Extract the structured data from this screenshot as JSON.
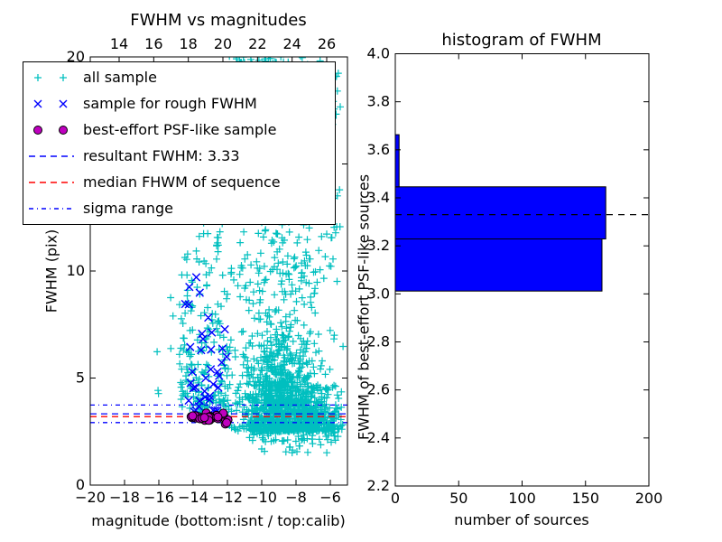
{
  "figure": {
    "background": "#ffffff"
  },
  "legend": {
    "items": [
      {
        "label": "all sample",
        "marker": "plus2",
        "color": "#00bfbf"
      },
      {
        "label": "sample for rough FWHM",
        "marker": "x2",
        "color": "#0000ff"
      },
      {
        "label": "best-effort PSF-like sample",
        "marker": "circle2",
        "color": "#bf00bf",
        "edge": "#000000"
      },
      {
        "label": "resultant FWHM: 3.33",
        "marker": "dash",
        "color": "#0000ff"
      },
      {
        "label": "median FHWM of sequence",
        "marker": "dash",
        "color": "#ff0000"
      },
      {
        "label": "sigma range",
        "marker": "dashdot",
        "color": "#0000ff"
      }
    ]
  },
  "chart_data": [
    {
      "type": "scatter",
      "title": "FWHM vs magnitudes",
      "xlabel": "magnitude (bottom:isnt / top:calib)",
      "ylabel": "FWHM (pix)",
      "xlim": [
        -20,
        -5
      ],
      "ylim": [
        0,
        20
      ],
      "xticks": [
        -20,
        -18,
        -16,
        -14,
        -12,
        -10,
        -8,
        -6
      ],
      "yticks": [
        0,
        5,
        10,
        15,
        20
      ],
      "top_axis_ticks": [
        14,
        16,
        18,
        20,
        22,
        24,
        26
      ],
      "top_axis_lim": [
        12.33,
        27.2
      ],
      "grid": false,
      "legend_position": "upper left",
      "hlines": [
        {
          "name": "resultant FWHM",
          "value": 3.33,
          "style": "dashed",
          "color": "#0000ff"
        },
        {
          "name": "median FHWM of sequence",
          "value": 3.2,
          "style": "dashed",
          "color": "#ff0000"
        },
        {
          "name": "sigma range upper",
          "value": 3.74,
          "style": "dashdot",
          "color": "#0000ff"
        },
        {
          "name": "sigma range lower",
          "value": 2.92,
          "style": "dashdot",
          "color": "#0000ff"
        }
      ],
      "series": [
        {
          "name": "all sample",
          "marker": "plus",
          "color": "#00bfbf",
          "seed": 101,
          "clusters": [
            {
              "count": 800,
              "x": {
                "dist": "normal",
                "a": -8.2,
                "b": 1.5
              },
              "y": {
                "dist": "expshift",
                "a": 2.5,
                "b": 0.6
              },
              "xr": [
                -12.2,
                -5.25
              ],
              "yr": [
                1.8,
                4.8
              ]
            },
            {
              "count": 700,
              "x": {
                "dist": "normal",
                "a": -8.9,
                "b": 1.2
              },
              "y": {
                "dist": "expshift",
                "a": 3.4,
                "b": 2.4
              },
              "xr": [
                -13.5,
                -5.25
              ],
              "yr": [
                3.4,
                20.4
              ]
            },
            {
              "count": 230,
              "x": {
                "dist": "uniform",
                "a": -13.9,
                "b": -5.4
              },
              "y": {
                "dist": "uniform",
                "a": 9.0,
                "b": 20.4
              }
            },
            {
              "count": 210,
              "x": {
                "dist": "uniform",
                "a": -14.8,
                "b": -11.9
              },
              "y": {
                "dist": "expshift",
                "a": 3.15,
                "b": 3.5
              },
              "yr": [
                3.15,
                20.4
              ]
            },
            {
              "count": 40,
              "x": {
                "dist": "normal",
                "a": -9.6,
                "b": 0.8
              },
              "y": {
                "dist": "uniform",
                "a": 19.3,
                "b": 20.45
              }
            },
            {
              "count": 60,
              "x": {
                "dist": "uniform",
                "a": -10.8,
                "b": -5.3
              },
              "y": {
                "dist": "uniform",
                "a": 2.0,
                "b": 2.65
              }
            },
            {
              "count": 14,
              "x": {
                "dist": "uniform",
                "a": -10.5,
                "b": -5.6
              },
              "y": {
                "dist": "uniform",
                "a": 1.5,
                "b": 2.1
              }
            },
            {
              "count": 6,
              "x": {
                "dist": "uniform",
                "a": -16.2,
                "b": -14.9
              },
              "y": {
                "dist": "uniform",
                "a": 3.5,
                "b": 10.0
              }
            }
          ]
        },
        {
          "name": "sample for rough FWHM",
          "marker": "x",
          "color": "#0000ff",
          "seed": 202,
          "clusters": [
            {
              "count": 38,
              "x": {
                "dist": "uniform",
                "a": -14.55,
                "b": -12.0
              },
              "y": {
                "dist": "expshift",
                "a": 3.3,
                "b": 1.8
              },
              "yr": [
                3.0,
                11.3
              ]
            }
          ]
        },
        {
          "name": "best-effort PSF-like sample",
          "marker": "circle",
          "color": "#bf00bf",
          "edge": "#000000",
          "seed": 303,
          "clusters": [
            {
              "count": 30,
              "x": {
                "dist": "uniform",
                "a": -14.5,
                "b": -11.95
              },
              "y": {
                "dist": "normal",
                "a": 3.13,
                "b": 0.1
              },
              "yr": [
                2.85,
                3.45
              ]
            }
          ]
        }
      ]
    },
    {
      "type": "bar",
      "orientation": "horizontal",
      "title": "histogram of FWHM",
      "xlabel": "number of sources",
      "ylabel": "FWHM of best-effort PSF-like sources",
      "xlim": [
        0,
        200
      ],
      "ylim": [
        2.2,
        4.0
      ],
      "xticks": [
        0,
        50,
        100,
        150,
        200
      ],
      "yticks": [
        2.2,
        2.4,
        2.6,
        2.8,
        3.0,
        3.2,
        3.4,
        3.6,
        3.8,
        4.0
      ],
      "grid": false,
      "bar_color": "#0000ff",
      "bar_edge": "#000000",
      "bins": [
        {
          "from": 3.012,
          "to": 3.229,
          "count": 163
        },
        {
          "from": 3.229,
          "to": 3.446,
          "count": 166
        },
        {
          "from": 3.446,
          "to": 3.663,
          "count": 3
        }
      ],
      "reference_line": {
        "name": "resultant FWHM",
        "value": 3.33,
        "style": "dashed",
        "color": "#000000"
      }
    }
  ]
}
